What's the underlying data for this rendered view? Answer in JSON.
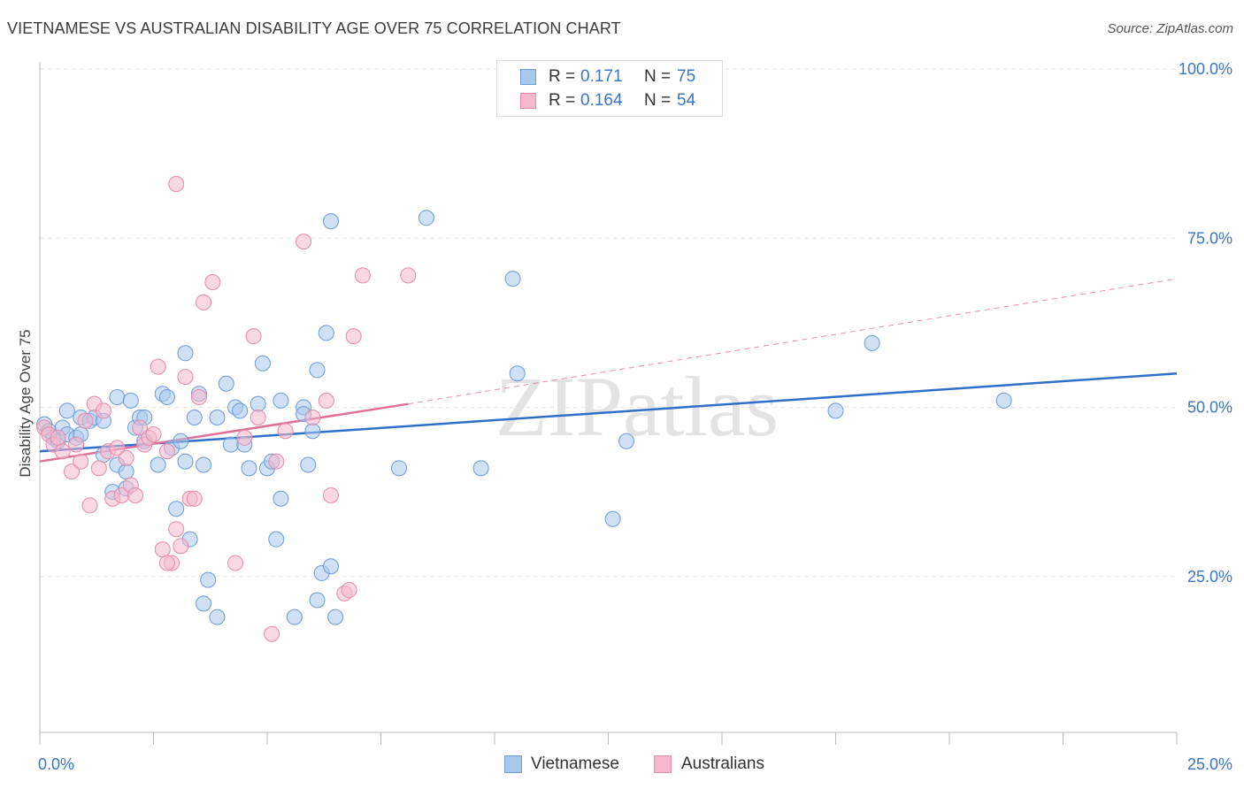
{
  "header": {
    "title": "VIETNAMESE VS AUSTRALIAN DISABILITY AGE OVER 75 CORRELATION CHART",
    "source": "Source: ZipAtlas.com"
  },
  "legend": {
    "r_label": "R = ",
    "n_label": "N = ",
    "rows": [
      {
        "r": "0.171",
        "n": "75"
      },
      {
        "r": "0.164",
        "n": "54"
      }
    ]
  },
  "bottom_legend": [
    "Vietnamese",
    "Australians"
  ],
  "watermark": "ZIPatlas",
  "colors": {
    "blue_fill": "#a9c8ee",
    "blue_stroke": "#6c9bd6",
    "blue_line": "#2f6fc8",
    "pink_fill": "#f5b8cc",
    "pink_stroke": "#e58aa8",
    "pink_line": "#e0709a",
    "tick_label": "#3a76c4",
    "grid": "#e6e6e6"
  },
  "chart_data": {
    "type": "scatter",
    "title": "VIETNAMESE VS AUSTRALIAN DISABILITY AGE OVER 75 CORRELATION CHART",
    "xlabel": "",
    "ylabel": "Disability Age Over 75",
    "xlim": [
      0,
      25
    ],
    "ylim": [
      0,
      105
    ],
    "x_tick_labels": [
      "0.0%",
      "25.0%"
    ],
    "y_ticks": [
      25,
      50,
      75,
      100
    ],
    "y_tick_labels": [
      "25.0%",
      "50.0%",
      "75.0%",
      "100.0%"
    ],
    "grid": true,
    "legend_position": "top-center",
    "series": [
      {
        "name": "Vietnamese",
        "r": 0.171,
        "n": 75,
        "trend": {
          "x": [
            0,
            25
          ],
          "y": [
            43.5,
            55.0
          ]
        },
        "points": [
          [
            0.1,
            47.5
          ],
          [
            0.2,
            46.5
          ],
          [
            0.3,
            45.5
          ],
          [
            0.4,
            45.0
          ],
          [
            0.5,
            47.0
          ],
          [
            0.6,
            46.0
          ],
          [
            0.8,
            45.5
          ],
          [
            0.9,
            46.0
          ],
          [
            0.6,
            49.5
          ],
          [
            0.9,
            48.5
          ],
          [
            1.1,
            48.0
          ],
          [
            1.2,
            48.5
          ],
          [
            1.4,
            48.0
          ],
          [
            1.4,
            43.0
          ],
          [
            1.6,
            37.5
          ],
          [
            1.7,
            41.5
          ],
          [
            1.7,
            51.5
          ],
          [
            1.9,
            40.5
          ],
          [
            1.9,
            38.0
          ],
          [
            2.0,
            51.0
          ],
          [
            2.1,
            47.0
          ],
          [
            2.2,
            48.5
          ],
          [
            2.3,
            48.5
          ],
          [
            2.3,
            45.0
          ],
          [
            2.6,
            41.5
          ],
          [
            2.7,
            52.0
          ],
          [
            2.8,
            51.5
          ],
          [
            2.9,
            44.0
          ],
          [
            3.0,
            35.0
          ],
          [
            3.1,
            45.0
          ],
          [
            3.2,
            58.0
          ],
          [
            3.2,
            42.0
          ],
          [
            3.3,
            30.5
          ],
          [
            3.4,
            48.5
          ],
          [
            3.5,
            52.0
          ],
          [
            3.6,
            41.5
          ],
          [
            3.7,
            24.5
          ],
          [
            3.9,
            48.5
          ],
          [
            4.1,
            53.5
          ],
          [
            4.2,
            44.5
          ],
          [
            4.3,
            50.0
          ],
          [
            4.4,
            49.5
          ],
          [
            4.5,
            44.5
          ],
          [
            4.6,
            41.0
          ],
          [
            4.8,
            50.5
          ],
          [
            4.9,
            56.5
          ],
          [
            5.0,
            41.0
          ],
          [
            5.1,
            42.0
          ],
          [
            5.2,
            30.5
          ],
          [
            5.3,
            36.5
          ],
          [
            5.3,
            51.0
          ],
          [
            5.6,
            19.0
          ],
          [
            5.8,
            50.0
          ],
          [
            5.8,
            49.0
          ],
          [
            5.9,
            41.5
          ],
          [
            6.0,
            46.5
          ],
          [
            6.1,
            55.5
          ],
          [
            6.3,
            61.0
          ],
          [
            6.2,
            25.5
          ],
          [
            6.4,
            26.5
          ],
          [
            6.5,
            19.0
          ],
          [
            6.4,
            77.5
          ],
          [
            7.9,
            41.0
          ],
          [
            8.5,
            78.0
          ],
          [
            9.7,
            41.0
          ],
          [
            10.4,
            69.0
          ],
          [
            10.5,
            55.0
          ],
          [
            12.6,
            33.5
          ],
          [
            12.9,
            45.0
          ],
          [
            17.5,
            49.5
          ],
          [
            18.3,
            59.5
          ],
          [
            21.2,
            51.0
          ],
          [
            3.6,
            21.0
          ],
          [
            3.9,
            19.0
          ],
          [
            6.1,
            21.5
          ]
        ]
      },
      {
        "name": "Australians",
        "r": 0.164,
        "n": 54,
        "trend": {
          "x": [
            0,
            8.1
          ],
          "y": [
            42.0,
            50.5
          ]
        },
        "trend_extension": {
          "x": [
            8.1,
            25
          ],
          "y": [
            50.5,
            69.0
          ]
        },
        "points": [
          [
            0.1,
            47.0
          ],
          [
            0.2,
            46.0
          ],
          [
            0.3,
            44.5
          ],
          [
            0.4,
            45.5
          ],
          [
            0.5,
            43.5
          ],
          [
            0.7,
            40.5
          ],
          [
            0.8,
            44.5
          ],
          [
            0.9,
            42.0
          ],
          [
            1.0,
            48.0
          ],
          [
            1.1,
            35.5
          ],
          [
            1.2,
            50.5
          ],
          [
            1.3,
            41.0
          ],
          [
            1.4,
            49.5
          ],
          [
            1.5,
            43.5
          ],
          [
            1.6,
            36.5
          ],
          [
            1.7,
            44.0
          ],
          [
            1.8,
            37.0
          ],
          [
            1.9,
            42.5
          ],
          [
            2.0,
            38.5
          ],
          [
            2.1,
            37.0
          ],
          [
            2.2,
            47.0
          ],
          [
            2.3,
            44.5
          ],
          [
            2.4,
            45.5
          ],
          [
            2.5,
            46.0
          ],
          [
            2.6,
            56.0
          ],
          [
            2.7,
            29.0
          ],
          [
            2.8,
            43.5
          ],
          [
            2.9,
            27.0
          ],
          [
            3.0,
            32.0
          ],
          [
            3.1,
            29.5
          ],
          [
            3.2,
            54.5
          ],
          [
            3.3,
            36.5
          ],
          [
            3.4,
            36.5
          ],
          [
            3.5,
            51.5
          ],
          [
            3.6,
            65.5
          ],
          [
            3.8,
            68.5
          ],
          [
            4.3,
            27.0
          ],
          [
            4.5,
            45.5
          ],
          [
            4.7,
            60.5
          ],
          [
            4.8,
            48.5
          ],
          [
            5.1,
            16.5
          ],
          [
            5.2,
            42.0
          ],
          [
            5.4,
            46.5
          ],
          [
            5.8,
            74.5
          ],
          [
            6.0,
            48.5
          ],
          [
            6.3,
            51.0
          ],
          [
            6.4,
            37.0
          ],
          [
            6.7,
            22.5
          ],
          [
            6.8,
            23.0
          ],
          [
            7.1,
            69.5
          ],
          [
            8.1,
            69.5
          ],
          [
            6.9,
            60.5
          ],
          [
            3.0,
            83.0
          ],
          [
            2.8,
            27.0
          ]
        ]
      }
    ]
  }
}
